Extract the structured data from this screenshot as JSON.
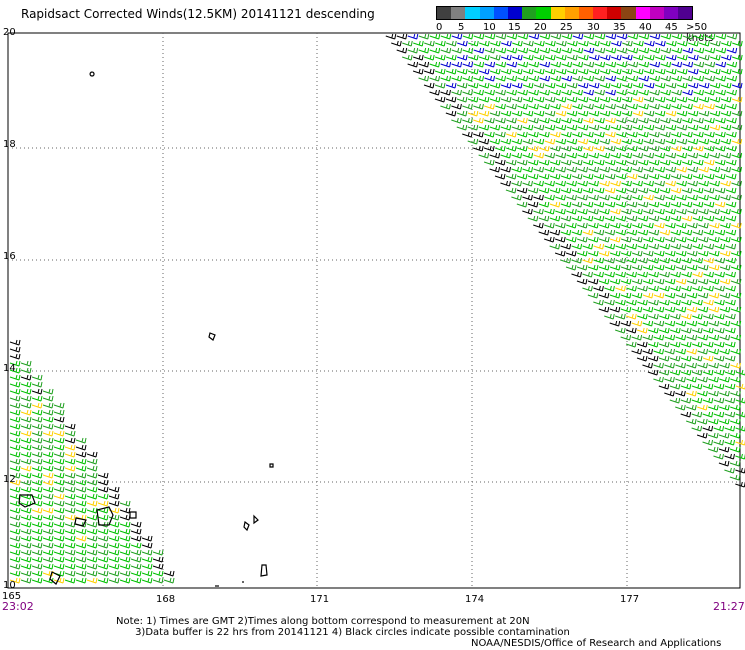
{
  "title": "Rapidsact Corrected Winds(12.5KM) 20141121 descending",
  "legend": {
    "colors": [
      "#404040",
      "#808080",
      "#00d0ff",
      "#00a0ff",
      "#0050ff",
      "#0000d0",
      "#20a020",
      "#00d000",
      "#ffd000",
      "#ffa000",
      "#ff6000",
      "#ff2020",
      "#d00000",
      "#8b4513",
      "#ff00ff",
      "#c000c0",
      "#8000c0",
      "#500090"
    ],
    "labels": [
      "0",
      "5",
      "10",
      "15",
      "20",
      "25",
      "30",
      "35",
      "40",
      "45",
      ">50 knots"
    ]
  },
  "lat_labels": [
    "20",
    "18",
    "16",
    "14",
    "12",
    "10"
  ],
  "lon_labels": [
    "165",
    "168",
    "171",
    "174",
    "177"
  ],
  "time_start": "23:02",
  "time_end": "21:27",
  "notes": "Note: 1) Times are GMT 2)Times along bottom correspond to measurement at 20N\n      3)Data buffer is 22 hrs from 20141121 4) Black circles indicate possible contamination",
  "credit": "NOAA/NESDIS/Office of Research and Applications"
}
